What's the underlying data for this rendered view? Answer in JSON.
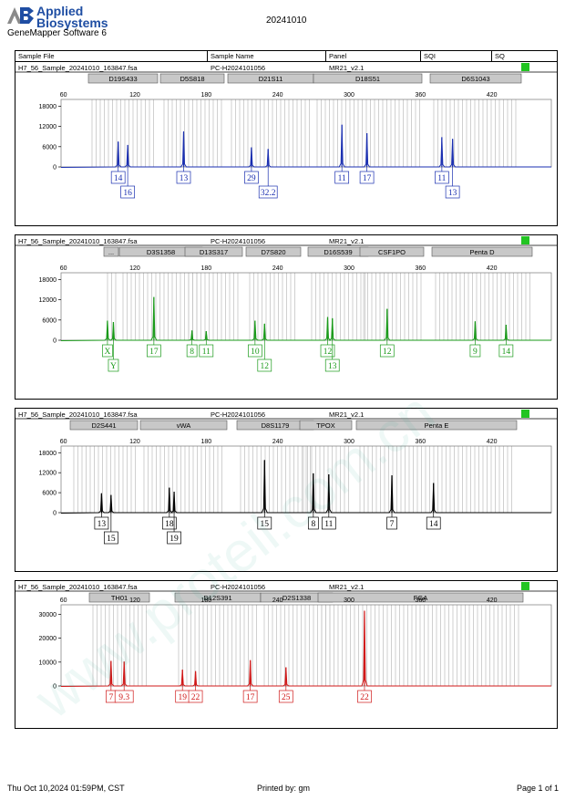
{
  "header": {
    "brand_line1": "Applied",
    "brand_line2": "Biosystems",
    "software": "GeneMapper Software 6",
    "run_date": "20241010"
  },
  "columns": {
    "sample_file": "Sample File",
    "sample_name": "Sample Name",
    "panel": "Panel",
    "sqi": "SQI",
    "sq": "SQ"
  },
  "footer": {
    "timestamp": "Thu Oct 10,2024 01:59PM, CST",
    "printed_by": "Printed by: gm",
    "page": "Page 1 of 1"
  },
  "watermark": "www.proteil.com.cn",
  "colors": {
    "blue": "#1a2fb0",
    "green": "#1a9a1a",
    "black": "#000000",
    "red": "#d01818",
    "sq_ok": "#22c422"
  },
  "chart_data": [
    {
      "type": "line",
      "dye": "blue",
      "file": "H7_56_Sample_20241010_163847.fsa",
      "sample_name": "PC-H2024101056",
      "panel": "MR21_v2.1",
      "x_ticks": [
        60,
        120,
        180,
        240,
        300,
        360,
        420
      ],
      "y_ticks": [
        0,
        6000,
        12000,
        18000
      ],
      "xlim": [
        58,
        470
      ],
      "ylim": [
        0,
        20000
      ],
      "markers": [
        "D19S433",
        "D5S818",
        "D21S11",
        "D18S51",
        "D6S1043"
      ],
      "peaks": [
        {
          "x": 106,
          "y": 7500
        },
        {
          "x": 114,
          "y": 6500
        },
        {
          "x": 161,
          "y": 10500
        },
        {
          "x": 218,
          "y": 5800
        },
        {
          "x": 232,
          "y": 5300
        },
        {
          "x": 294,
          "y": 12500
        },
        {
          "x": 315,
          "y": 10000
        },
        {
          "x": 378,
          "y": 8800
        },
        {
          "x": 387,
          "y": 8300
        }
      ],
      "alleles": [
        {
          "x": 106,
          "label": "14",
          "row": 0
        },
        {
          "x": 114,
          "label": "16",
          "row": 1
        },
        {
          "x": 161,
          "label": "13",
          "row": 0
        },
        {
          "x": 218,
          "label": "29",
          "row": 0
        },
        {
          "x": 232,
          "label": "32.2",
          "row": 1
        },
        {
          "x": 294,
          "label": "11",
          "row": 0
        },
        {
          "x": 315,
          "label": "17",
          "row": 0
        },
        {
          "x": 378,
          "label": "11",
          "row": 0
        },
        {
          "x": 387,
          "label": "13",
          "row": 1
        }
      ]
    },
    {
      "type": "line",
      "dye": "green",
      "file": "H7_56_Sample_20241010_163847.fsa",
      "sample_name": "PC-H2024101056",
      "panel": "MR21_v2.1",
      "x_ticks": [
        60,
        120,
        180,
        240,
        300,
        360,
        420
      ],
      "y_ticks": [
        0,
        6000,
        12000,
        18000
      ],
      "xlim": [
        58,
        470
      ],
      "ylim": [
        0,
        20000
      ],
      "markers": [
        "...",
        "D3S1358",
        "D13S317",
        "D7S820",
        "D16S539",
        "CSF1PO",
        "Penta D"
      ],
      "peaks": [
        {
          "x": 97,
          "y": 5800
        },
        {
          "x": 102,
          "y": 5400
        },
        {
          "x": 136,
          "y": 12800
        },
        {
          "x": 168,
          "y": 2900
        },
        {
          "x": 180,
          "y": 2700
        },
        {
          "x": 221,
          "y": 5800
        },
        {
          "x": 229,
          "y": 4900
        },
        {
          "x": 282,
          "y": 6900
        },
        {
          "x": 286,
          "y": 6500
        },
        {
          "x": 332,
          "y": 9300
        },
        {
          "x": 406,
          "y": 5600
        },
        {
          "x": 432,
          "y": 4600
        }
      ],
      "alleles": [
        {
          "x": 97,
          "label": "X",
          "row": 0
        },
        {
          "x": 102,
          "label": "Y",
          "row": 1
        },
        {
          "x": 136,
          "label": "17",
          "row": 0
        },
        {
          "x": 168,
          "label": "8",
          "row": 0
        },
        {
          "x": 180,
          "label": "11",
          "row": 0
        },
        {
          "x": 221,
          "label": "10",
          "row": 0
        },
        {
          "x": 229,
          "label": "12",
          "row": 1
        },
        {
          "x": 282,
          "label": "12",
          "row": 0
        },
        {
          "x": 286,
          "label": "13",
          "row": 1
        },
        {
          "x": 332,
          "label": "12",
          "row": 0
        },
        {
          "x": 406,
          "label": "9",
          "row": 0
        },
        {
          "x": 432,
          "label": "14",
          "row": 0
        }
      ]
    },
    {
      "type": "line",
      "dye": "black",
      "file": "H7_56_Sample_20241010_163847.fsa",
      "sample_name": "PC-H2024101056",
      "panel": "MR21_v2.1",
      "x_ticks": [
        60,
        120,
        180,
        240,
        300,
        360,
        420
      ],
      "y_ticks": [
        0,
        6000,
        12000,
        18000
      ],
      "xlim": [
        58,
        470
      ],
      "ylim": [
        0,
        20000
      ],
      "markers": [
        "D2S441",
        "vWA",
        "D8S1179",
        "TPOX",
        "Penta E"
      ],
      "peaks": [
        {
          "x": 92,
          "y": 5800
        },
        {
          "x": 100,
          "y": 5300
        },
        {
          "x": 149,
          "y": 7500
        },
        {
          "x": 153,
          "y": 6300
        },
        {
          "x": 229,
          "y": 15800
        },
        {
          "x": 270,
          "y": 11800
        },
        {
          "x": 283,
          "y": 11500
        },
        {
          "x": 336,
          "y": 11200
        },
        {
          "x": 371,
          "y": 8900
        }
      ],
      "alleles": [
        {
          "x": 92,
          "label": "13",
          "row": 0
        },
        {
          "x": 100,
          "label": "15",
          "row": 1
        },
        {
          "x": 149,
          "label": "18",
          "row": 0
        },
        {
          "x": 153,
          "label": "19",
          "row": 1
        },
        {
          "x": 229,
          "label": "15",
          "row": 0
        },
        {
          "x": 270,
          "label": "8",
          "row": 0
        },
        {
          "x": 283,
          "label": "11",
          "row": 0
        },
        {
          "x": 336,
          "label": "7",
          "row": 0
        },
        {
          "x": 371,
          "label": "14",
          "row": 0
        }
      ]
    },
    {
      "type": "line",
      "dye": "red",
      "file": "H7_56_Sample_20241010_163847.fsa",
      "sample_name": "PC-H2024101056",
      "panel": "MR21_v2.1",
      "x_ticks": [
        60,
        120,
        180,
        240,
        300,
        360,
        420
      ],
      "y_ticks": [
        0,
        10000,
        20000,
        30000
      ],
      "xlim": [
        58,
        470
      ],
      "ylim": [
        0,
        34000
      ],
      "markers": [
        "TH01",
        "D12S391",
        "D2S1338",
        "FGA"
      ],
      "peaks": [
        {
          "x": 100,
          "y": 10500
        },
        {
          "x": 111,
          "y": 10200
        },
        {
          "x": 160,
          "y": 6800
        },
        {
          "x": 171,
          "y": 6200
        },
        {
          "x": 217,
          "y": 10800
        },
        {
          "x": 247,
          "y": 7800
        },
        {
          "x": 313,
          "y": 31500
        }
      ],
      "alleles": [
        {
          "x": 100,
          "label": "7",
          "row": 0
        },
        {
          "x": 111,
          "label": "9.3",
          "row": 0
        },
        {
          "x": 160,
          "label": "19",
          "row": 0
        },
        {
          "x": 171,
          "label": "22",
          "row": 0
        },
        {
          "x": 217,
          "label": "17",
          "row": 0
        },
        {
          "x": 247,
          "label": "25",
          "row": 0
        },
        {
          "x": 313,
          "label": "22",
          "row": 0
        }
      ]
    }
  ]
}
